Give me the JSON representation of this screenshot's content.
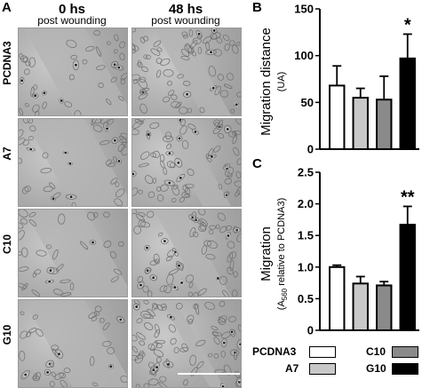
{
  "panel_a": {
    "letter": "A",
    "columns": [
      {
        "title": "0 hs",
        "subtitle": "post wounding"
      },
      {
        "title": "48 hs",
        "subtitle": "post wounding"
      }
    ],
    "rows": [
      "PCDNA3",
      "A7",
      "C10",
      "G10"
    ]
  },
  "chart_data": [
    {
      "type": "bar",
      "panel": "B",
      "categories": [
        "PCDNA3",
        "A7",
        "C10",
        "G10"
      ],
      "values": [
        68,
        55,
        53,
        97
      ],
      "errors": [
        21,
        10,
        25,
        26
      ],
      "colors": [
        "#ffffff",
        "#c8c8c8",
        "#8a8a8a",
        "#000000"
      ],
      "ylabel": "Migration distance",
      "ylabel_sub": "(UA)",
      "ylim": [
        0,
        150
      ],
      "yticks": [
        "0",
        "50",
        "100",
        "150"
      ],
      "annotations": [
        {
          "category": "G10",
          "text": "*"
        }
      ]
    },
    {
      "type": "bar",
      "panel": "C",
      "categories": [
        "PCDNA3",
        "A7",
        "C10",
        "G10"
      ],
      "values": [
        1.0,
        0.74,
        0.71,
        1.67
      ],
      "errors": [
        0.03,
        0.11,
        0.06,
        0.29
      ],
      "colors": [
        "#ffffff",
        "#c8c8c8",
        "#8a8a8a",
        "#000000"
      ],
      "ylabel": "Migration",
      "ylabel_sub_pre": "(A",
      "ylabel_sub_subscript": "560",
      "ylabel_sub_post": " relative to PCDNA3)",
      "ylim": [
        0,
        2.5
      ],
      "yticks": [
        "0",
        "0.5",
        "1.0",
        "1.5",
        "2.0",
        "2.5"
      ],
      "annotations": [
        {
          "category": "G10",
          "text": "**"
        }
      ]
    }
  ],
  "legend": {
    "items": [
      {
        "label": "PCDNA3",
        "color": "#ffffff"
      },
      {
        "label": "A7",
        "color": "#c8c8c8"
      },
      {
        "label": "C10",
        "color": "#8a8a8a"
      },
      {
        "label": "G10",
        "color": "#000000"
      }
    ]
  }
}
